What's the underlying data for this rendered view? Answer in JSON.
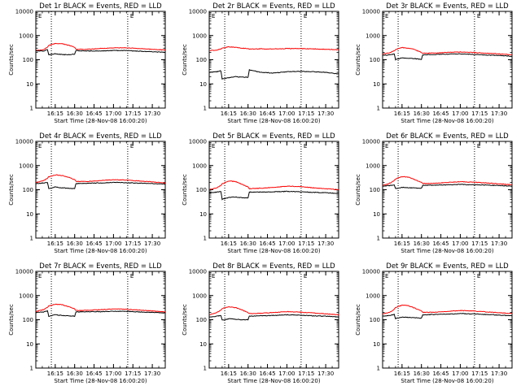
{
  "common": {
    "title_suffix": "BLACK = Events, RED = LLD",
    "xlabel": "Start Time (28-Nov-08 16:00:20)",
    "ylabel": "Counts/sec",
    "corner_mark": "E",
    "x_ticks": [
      "16:15",
      "16:30",
      "16:45",
      "17:00",
      "17:15",
      "17:30"
    ],
    "y_ticks": [
      "1",
      "10",
      "100",
      "1000",
      "10000"
    ],
    "colors": {
      "events": "#000000",
      "lld": "#ff0000"
    }
  },
  "chart_data": [
    {
      "type": "line",
      "title": "Det 1r BLACK = Events, RED = LLD",
      "xlabel": "Start Time (28-Nov-08 16:00:20)",
      "ylabel": "Counts/sec",
      "xlim": [
        "16:00",
        "17:40"
      ],
      "ylim": [
        1,
        10000
      ],
      "yscale": "log",
      "event_markers": [
        "16:12",
        "17:11"
      ],
      "x": [
        "16:00",
        "16:06",
        "16:09",
        "16:10",
        "16:15",
        "16:20",
        "16:25",
        "16:30",
        "16:31",
        "16:40",
        "16:50",
        "17:00",
        "17:10",
        "17:20",
        "17:30",
        "17:40"
      ],
      "series": [
        {
          "name": "Events",
          "values": [
            230,
            230,
            260,
            160,
            175,
            165,
            160,
            170,
            240,
            230,
            230,
            240,
            240,
            225,
            215,
            200
          ]
        },
        {
          "name": "LLD",
          "values": [
            240,
            260,
            330,
            390,
            470,
            460,
            400,
            330,
            270,
            270,
            290,
            310,
            310,
            290,
            270,
            250
          ]
        }
      ]
    },
    {
      "type": "line",
      "title": "Det 2r BLACK = Events, RED = LLD",
      "xlabel": "Start Time (28-Nov-08 16:00:20)",
      "ylabel": "Counts/sec",
      "xlim": [
        "16:00",
        "17:40"
      ],
      "ylim": [
        1,
        10000
      ],
      "yscale": "log",
      "event_markers": [
        "16:12",
        "17:11"
      ],
      "x": [
        "16:00",
        "16:06",
        "16:09",
        "16:10",
        "16:15",
        "16:20",
        "16:25",
        "16:30",
        "16:31",
        "16:40",
        "16:50",
        "17:00",
        "17:10",
        "17:20",
        "17:30",
        "17:40"
      ],
      "series": [
        {
          "name": "Events",
          "values": [
            30,
            32,
            35,
            16,
            18,
            20,
            19,
            19,
            38,
            30,
            28,
            32,
            33,
            32,
            30,
            26
          ]
        },
        {
          "name": "LLD",
          "values": [
            240,
            250,
            280,
            300,
            340,
            330,
            300,
            290,
            280,
            280,
            280,
            290,
            290,
            280,
            270,
            260
          ]
        }
      ]
    },
    {
      "type": "line",
      "title": "Det 3r BLACK = Events, RED = LLD",
      "xlabel": "Start Time (28-Nov-08 16:00:20)",
      "ylabel": "Counts/sec",
      "xlim": [
        "16:00",
        "17:40"
      ],
      "ylim": [
        1,
        10000
      ],
      "yscale": "log",
      "event_markers": [
        "16:12",
        "17:11"
      ],
      "x": [
        "16:00",
        "16:06",
        "16:09",
        "16:10",
        "16:15",
        "16:20",
        "16:25",
        "16:30",
        "16:31",
        "16:40",
        "16:50",
        "17:00",
        "17:10",
        "17:20",
        "17:30",
        "17:40"
      ],
      "series": [
        {
          "name": "Events",
          "values": [
            150,
            160,
            170,
            100,
            120,
            115,
            110,
            105,
            160,
            165,
            170,
            175,
            165,
            155,
            150,
            140
          ]
        },
        {
          "name": "LLD",
          "values": [
            170,
            200,
            240,
            260,
            320,
            300,
            260,
            200,
            185,
            190,
            200,
            210,
            200,
            185,
            175,
            160
          ]
        }
      ]
    },
    {
      "type": "line",
      "title": "Det 4r BLACK = Events, RED = LLD",
      "xlabel": "Start Time (28-Nov-08 16:00:20)",
      "ylabel": "Counts/sec",
      "xlim": [
        "16:00",
        "17:40"
      ],
      "ylim": [
        1,
        10000
      ],
      "yscale": "log",
      "event_markers": [
        "16:12",
        "17:11"
      ],
      "x": [
        "16:00",
        "16:06",
        "16:09",
        "16:10",
        "16:15",
        "16:20",
        "16:25",
        "16:30",
        "16:31",
        "16:40",
        "16:50",
        "17:00",
        "17:10",
        "17:20",
        "17:30",
        "17:40"
      ],
      "series": [
        {
          "name": "Events",
          "values": [
            180,
            190,
            200,
            110,
            130,
            120,
            115,
            110,
            180,
            185,
            190,
            200,
            195,
            185,
            180,
            170
          ]
        },
        {
          "name": "LLD",
          "values": [
            200,
            240,
            300,
            340,
            410,
            390,
            330,
            260,
            220,
            220,
            240,
            260,
            250,
            230,
            210,
            190
          ]
        }
      ]
    },
    {
      "type": "line",
      "title": "Det 5r BLACK = Events, RED = LLD",
      "xlabel": "Start Time (28-Nov-08 16:00:20)",
      "ylabel": "Counts/sec",
      "xlim": [
        "16:00",
        "17:40"
      ],
      "ylim": [
        1,
        10000
      ],
      "yscale": "log",
      "event_markers": [
        "16:12",
        "17:11"
      ],
      "x": [
        "16:00",
        "16:06",
        "16:09",
        "16:10",
        "16:15",
        "16:20",
        "16:25",
        "16:30",
        "16:31",
        "16:40",
        "16:50",
        "17:00",
        "17:10",
        "17:20",
        "17:30",
        "17:40"
      ],
      "series": [
        {
          "name": "Events",
          "values": [
            75,
            80,
            85,
            40,
            48,
            50,
            47,
            45,
            80,
            80,
            82,
            85,
            82,
            78,
            75,
            70
          ]
        },
        {
          "name": "LLD",
          "values": [
            100,
            120,
            150,
            175,
            230,
            220,
            170,
            130,
            110,
            115,
            125,
            140,
            135,
            120,
            110,
            100
          ]
        }
      ]
    },
    {
      "type": "line",
      "title": "Det 6r BLACK = Events, RED = LLD",
      "xlabel": "Start Time (28-Nov-08 16:00:20)",
      "ylabel": "Counts/sec",
      "xlim": [
        "16:00",
        "17:40"
      ],
      "ylim": [
        1,
        10000
      ],
      "yscale": "log",
      "event_markers": [
        "16:12",
        "17:11"
      ],
      "x": [
        "16:00",
        "16:06",
        "16:09",
        "16:10",
        "16:15",
        "16:20",
        "16:25",
        "16:30",
        "16:31",
        "16:40",
        "16:50",
        "17:00",
        "17:10",
        "17:20",
        "17:30",
        "17:40"
      ],
      "series": [
        {
          "name": "Events",
          "values": [
            140,
            150,
            160,
            110,
            125,
            120,
            118,
            115,
            150,
            155,
            160,
            165,
            160,
            155,
            150,
            140
          ]
        },
        {
          "name": "LLD",
          "values": [
            150,
            190,
            240,
            280,
            350,
            330,
            260,
            200,
            180,
            185,
            200,
            215,
            205,
            190,
            175,
            160
          ]
        }
      ]
    },
    {
      "type": "line",
      "title": "Det 7r BLACK = Events, RED = LLD",
      "xlabel": "Start Time (28-Nov-08 16:00:20)",
      "ylabel": "Counts/sec",
      "xlim": [
        "16:00",
        "17:40"
      ],
      "ylim": [
        1,
        10000
      ],
      "yscale": "log",
      "event_markers": [
        "16:12",
        "17:11"
      ],
      "x": [
        "16:00",
        "16:06",
        "16:09",
        "16:10",
        "16:15",
        "16:20",
        "16:25",
        "16:30",
        "16:31",
        "16:40",
        "16:50",
        "17:00",
        "17:10",
        "17:20",
        "17:30",
        "17:40"
      ],
      "series": [
        {
          "name": "Events",
          "values": [
            200,
            210,
            230,
            140,
            160,
            150,
            145,
            140,
            210,
            215,
            215,
            225,
            220,
            210,
            200,
            190
          ]
        },
        {
          "name": "LLD",
          "values": [
            220,
            260,
            320,
            370,
            440,
            420,
            350,
            280,
            240,
            245,
            260,
            280,
            270,
            250,
            230,
            210
          ]
        }
      ]
    },
    {
      "type": "line",
      "title": "Det 8r BLACK = Events, RED = LLD",
      "xlabel": "Start Time (28-Nov-08 16:00:20)",
      "ylabel": "Counts/sec",
      "xlim": [
        "16:00",
        "17:40"
      ],
      "ylim": [
        1,
        10000
      ],
      "yscale": "log",
      "event_markers": [
        "16:12",
        "17:11"
      ],
      "x": [
        "16:00",
        "16:06",
        "16:09",
        "16:10",
        "16:15",
        "16:20",
        "16:25",
        "16:30",
        "16:31",
        "16:40",
        "16:50",
        "17:00",
        "17:10",
        "17:20",
        "17:30",
        "17:40"
      ],
      "series": [
        {
          "name": "Events",
          "values": [
            130,
            140,
            150,
            95,
            110,
            105,
            100,
            100,
            140,
            145,
            150,
            160,
            155,
            145,
            140,
            130
          ]
        },
        {
          "name": "LLD",
          "values": [
            160,
            200,
            250,
            290,
            340,
            320,
            260,
            200,
            180,
            185,
            200,
            215,
            205,
            190,
            175,
            160
          ]
        }
      ]
    },
    {
      "type": "line",
      "title": "Det 9r BLACK = Events, RED = LLD",
      "xlabel": "Start Time (28-Nov-08 16:00:20)",
      "ylabel": "Counts/sec",
      "xlim": [
        "16:00",
        "17:40"
      ],
      "ylim": [
        1,
        10000
      ],
      "yscale": "log",
      "event_markers": [
        "16:12",
        "17:11"
      ],
      "x": [
        "16:00",
        "16:06",
        "16:09",
        "16:10",
        "16:15",
        "16:20",
        "16:25",
        "16:30",
        "16:31",
        "16:40",
        "16:50",
        "17:00",
        "17:10",
        "17:20",
        "17:30",
        "17:40"
      ],
      "series": [
        {
          "name": "Events",
          "values": [
            140,
            150,
            165,
            110,
            130,
            125,
            120,
            115,
            160,
            165,
            170,
            180,
            175,
            165,
            155,
            145
          ]
        },
        {
          "name": "LLD",
          "values": [
            170,
            210,
            270,
            320,
            400,
            380,
            300,
            230,
            200,
            205,
            220,
            240,
            230,
            210,
            195,
            180
          ]
        }
      ]
    }
  ]
}
